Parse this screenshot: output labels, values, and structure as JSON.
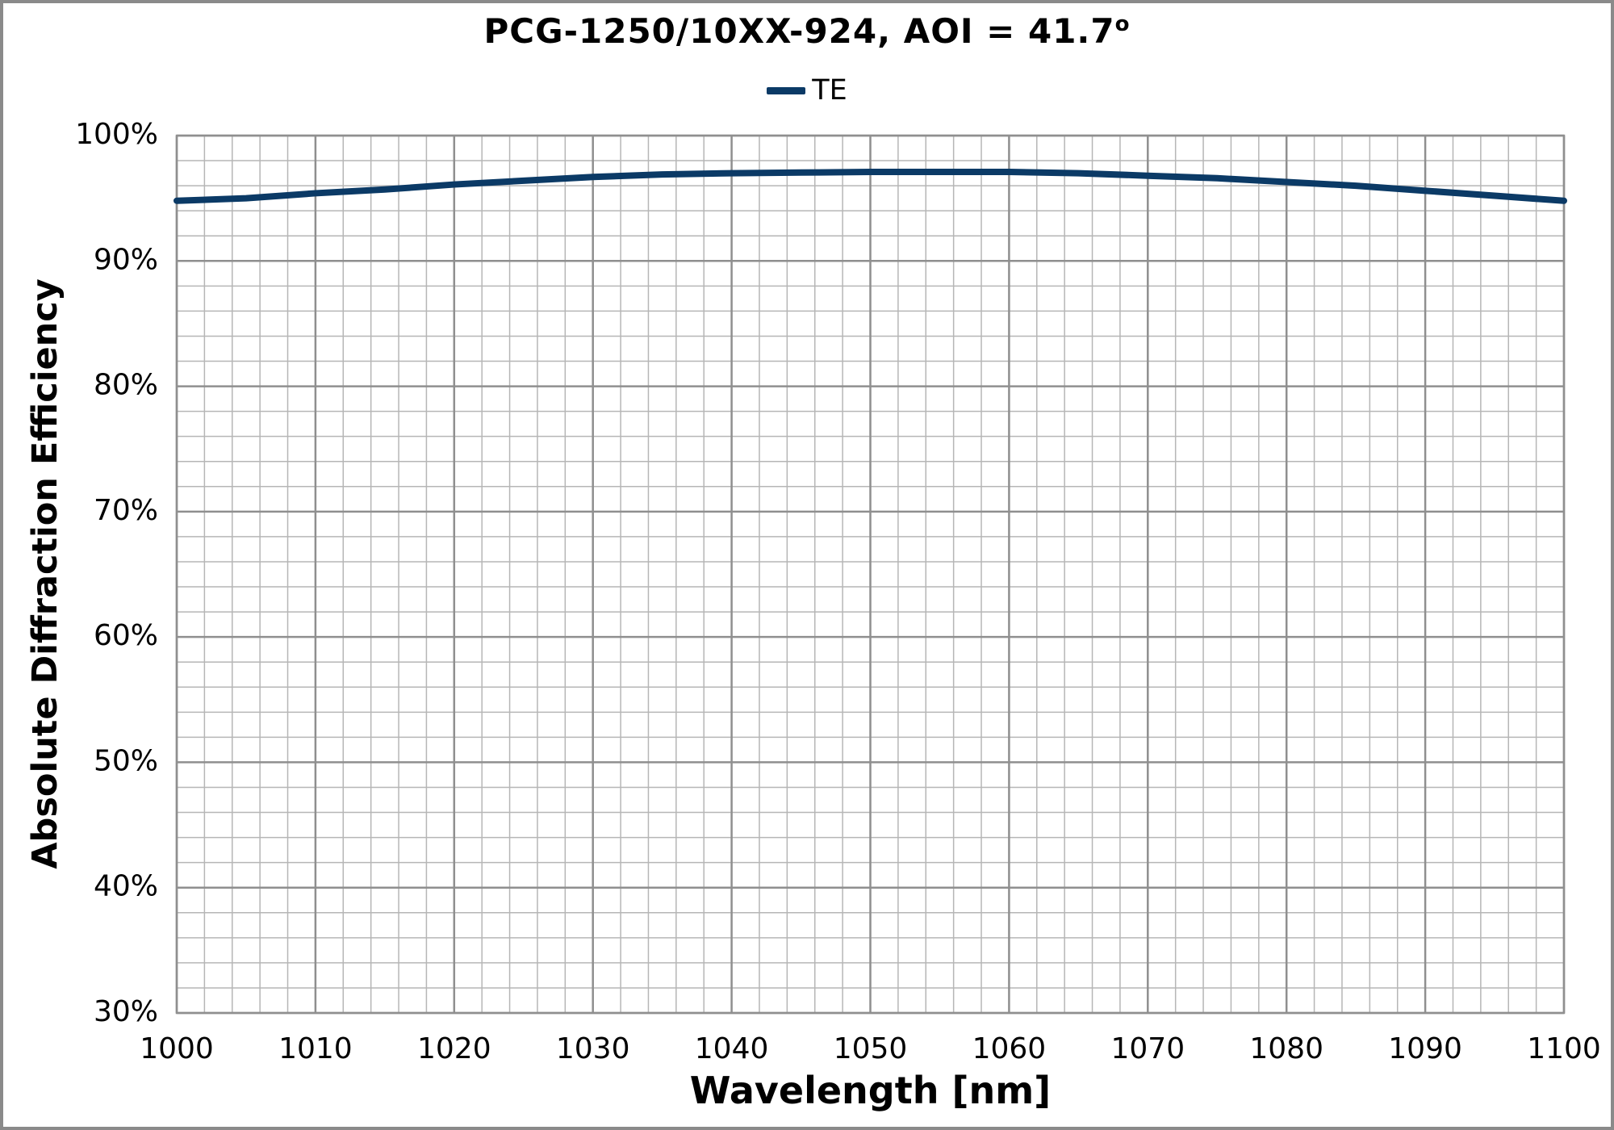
{
  "colors": {
    "line": "#0b3a66",
    "grid_minor": "#b6b6b6",
    "grid_major": "#8f8f8f",
    "frame": "#8f8f8f",
    "text": "#000000",
    "background": "#ffffff",
    "outer_border": "#8a8a8a"
  },
  "chart_data": {
    "type": "line",
    "title_main": "PCG-1250/10XX-924, AOI = 41.7",
    "title_degree": "o",
    "xlabel": "Wavelength [nm]",
    "ylabel": "Absolute Diffraction Efficiency",
    "xlim": [
      1000,
      1100
    ],
    "ylim": [
      30,
      100
    ],
    "x_major_step": 10,
    "x_minor_step": 2,
    "y_major_step": 10,
    "y_minor_step": 2,
    "grid": "major-and-minor",
    "legend_position": "top-center",
    "x_ticks": [
      {
        "value": 1000,
        "label": "1000"
      },
      {
        "value": 1010,
        "label": "1010"
      },
      {
        "value": 1020,
        "label": "1020"
      },
      {
        "value": 1030,
        "label": "1030"
      },
      {
        "value": 1040,
        "label": "1040"
      },
      {
        "value": 1050,
        "label": "1050"
      },
      {
        "value": 1060,
        "label": "1060"
      },
      {
        "value": 1070,
        "label": "1070"
      },
      {
        "value": 1080,
        "label": "1080"
      },
      {
        "value": 1090,
        "label": "1090"
      },
      {
        "value": 1100,
        "label": "1100"
      }
    ],
    "y_ticks": [
      {
        "value": 100,
        "label": "100%"
      },
      {
        "value": 90,
        "label": "90%"
      },
      {
        "value": 80,
        "label": "80%"
      },
      {
        "value": 70,
        "label": "70%"
      },
      {
        "value": 60,
        "label": "60%"
      },
      {
        "value": 50,
        "label": "50%"
      },
      {
        "value": 40,
        "label": "40%"
      },
      {
        "value": 30,
        "label": "30%"
      }
    ],
    "series": [
      {
        "name": "TE",
        "color": "#0b3a66",
        "x": [
          1000,
          1005,
          1010,
          1015,
          1020,
          1025,
          1030,
          1035,
          1040,
          1045,
          1050,
          1055,
          1060,
          1065,
          1070,
          1075,
          1080,
          1085,
          1090,
          1095,
          1100
        ],
        "y": [
          94.8,
          95.0,
          95.4,
          95.7,
          96.1,
          96.4,
          96.7,
          96.9,
          97.0,
          97.05,
          97.1,
          97.1,
          97.1,
          97.0,
          96.8,
          96.6,
          96.3,
          96.0,
          95.6,
          95.2,
          94.8
        ]
      }
    ]
  }
}
